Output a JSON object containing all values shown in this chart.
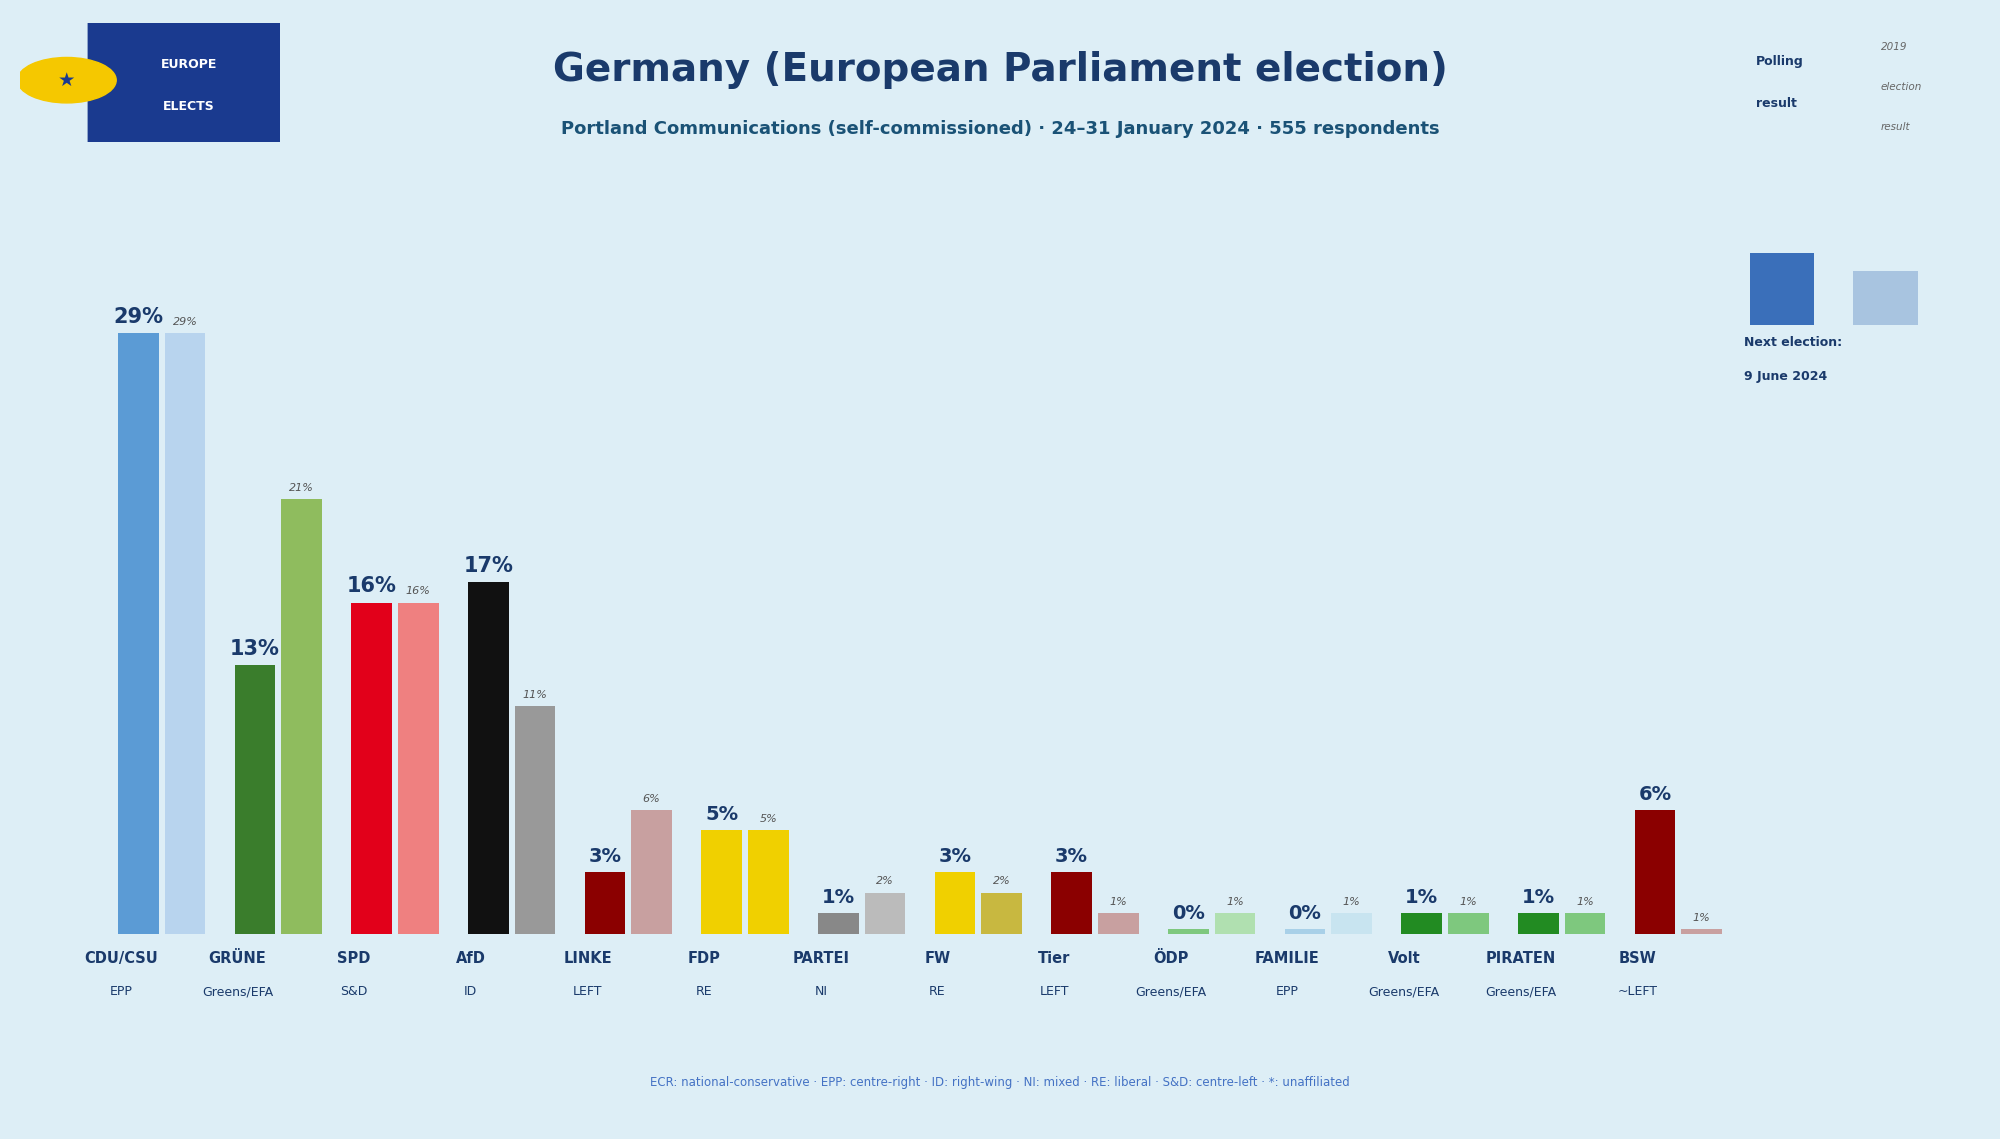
{
  "title": "Germany (European Parliament election)",
  "subtitle": "Portland Communications (self-commissioned) · 24–31 January 2024 · 555 respondents",
  "background_color": "#ddeef6",
  "parties": [
    {
      "name": "CDU/CSU",
      "group": "EPP",
      "poll": 29,
      "prev": 29,
      "color": "#5b9bd5",
      "prev_color": "#b8d4ee"
    },
    {
      "name": "GRÜNE",
      "group": "Greens/EFA",
      "poll": 13,
      "prev": 21,
      "color": "#3a7d2c",
      "prev_color": "#8fbc5e"
    },
    {
      "name": "SPD",
      "group": "S&D",
      "poll": 16,
      "prev": 16,
      "color": "#e2001a",
      "prev_color": "#ef8080"
    },
    {
      "name": "AfD",
      "group": "ID",
      "poll": 17,
      "prev": 11,
      "color": "#111111",
      "prev_color": "#999999"
    },
    {
      "name": "LINKE",
      "group": "LEFT",
      "poll": 3,
      "prev": 6,
      "color": "#8b0000",
      "prev_color": "#c8a0a0"
    },
    {
      "name": "FDP",
      "group": "RE",
      "poll": 5,
      "prev": 5,
      "color": "#f0d000",
      "prev_color": "#f0d000"
    },
    {
      "name": "PARTEI",
      "group": "NI",
      "poll": 1,
      "prev": 2,
      "color": "#888888",
      "prev_color": "#bbbbbb"
    },
    {
      "name": "FW",
      "group": "RE",
      "poll": 3,
      "prev": 2,
      "color": "#f0d000",
      "prev_color": "#c8b840"
    },
    {
      "name": "Tier",
      "group": "LEFT",
      "poll": 3,
      "prev": 1,
      "color": "#8b0000",
      "prev_color": "#c8a0a0"
    },
    {
      "name": "ÖDP",
      "group": "Greens/EFA",
      "poll": 0,
      "prev": 1,
      "color": "#7ec87e",
      "prev_color": "#b0e0b0"
    },
    {
      "name": "FAMILIE",
      "group": "EPP",
      "poll": 0,
      "prev": 1,
      "color": "#a8d0e8",
      "prev_color": "#c8e4f0"
    },
    {
      "name": "Volt",
      "group": "Greens/EFA",
      "poll": 1,
      "prev": 1,
      "color": "#228B22",
      "prev_color": "#7ec87e"
    },
    {
      "name": "PIRATEN",
      "group": "Greens/EFA",
      "poll": 1,
      "prev": 1,
      "color": "#228B22",
      "prev_color": "#7ec87e"
    },
    {
      "name": "BSW",
      "group": "~LEFT",
      "poll": 6,
      "prev": 0,
      "color": "#8b0000",
      "prev_color": "#c8a0a0"
    }
  ],
  "title_color": "#1a3a6b",
  "subtitle_color": "#1a5276",
  "label_color": "#1a3a6b",
  "footer": "ECR: national-conservative · EPP: centre-right · ID: right-wing · NI: mixed · RE: liberal · S&D: centre-left · *: unaffiliated",
  "ylim": 33,
  "bar_width": 0.35,
  "bar_gap": 0.05
}
